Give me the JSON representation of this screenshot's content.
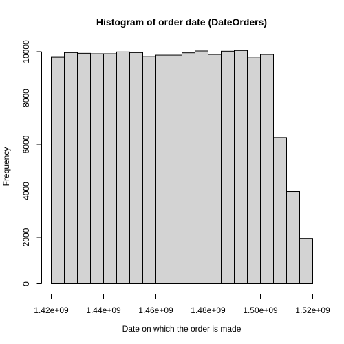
{
  "chart_data": {
    "type": "bar",
    "title": "Histogram of order date (DateOrders)",
    "xlabel": "Date on which the order is made",
    "ylabel": "Frequency",
    "bin_edges": [
      1420000000.0,
      1425000000.0,
      1430000000.0,
      1435000000.0,
      1440000000.0,
      1445000000.0,
      1450000000.0,
      1455000000.0,
      1460000000.0,
      1465000000.0,
      1470000000.0,
      1475000000.0,
      1480000000.0,
      1485000000.0,
      1490000000.0,
      1495000000.0,
      1500000000.0,
      1505000000.0,
      1510000000.0,
      1515000000.0,
      1520000000.0
    ],
    "values": [
      9760,
      9960,
      9930,
      9910,
      9910,
      9990,
      9960,
      9800,
      9850,
      9850,
      9950,
      10030,
      9880,
      10020,
      10050,
      9730,
      9880,
      6300,
      3970,
      1950
    ],
    "xlim": [
      1420000000.0,
      1520000000.0
    ],
    "ylim": [
      0,
      10500
    ],
    "xticks": [
      1420000000.0,
      1440000000.0,
      1460000000.0,
      1480000000.0,
      1500000000.0,
      1520000000.0
    ],
    "xtick_labels": [
      "1.42e+09",
      "1.44e+09",
      "1.46e+09",
      "1.48e+09",
      "1.50e+09",
      "1.52e+09"
    ],
    "yticks": [
      0,
      2000,
      4000,
      6000,
      8000,
      10000
    ],
    "ytick_labels": [
      "0",
      "2000",
      "4000",
      "6000",
      "8000",
      "10000"
    ],
    "grid": false,
    "bar_fill": "#d3d3d3",
    "bar_stroke": "#000000"
  }
}
